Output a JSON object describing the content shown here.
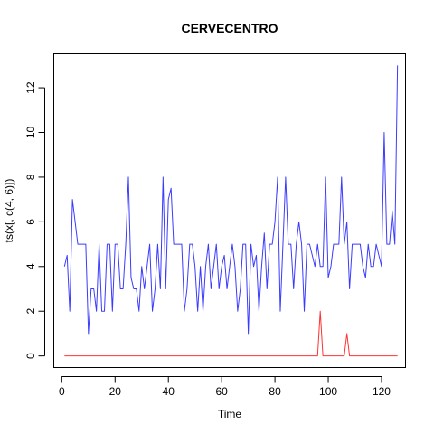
{
  "chart_data": {
    "type": "line",
    "title": "CERVECENTRO",
    "xlabel": "Time",
    "ylabel": "ts(x[, c(4, 6)])",
    "xlim": [
      -3,
      129
    ],
    "ylim": [
      -0.52,
      13.52
    ],
    "xticks": [
      0,
      20,
      40,
      60,
      80,
      100,
      120
    ],
    "yticks": [
      0,
      2,
      4,
      6,
      8,
      10,
      12
    ],
    "grid": false,
    "x_start": 1,
    "series": [
      {
        "color": "#3b3bff",
        "values": [
          4,
          4.5,
          2,
          7,
          6,
          5,
          5,
          5,
          5,
          1,
          3,
          3,
          2,
          5,
          2,
          2,
          5,
          5,
          2,
          5,
          5,
          3,
          3,
          5,
          8,
          3.5,
          3,
          3,
          2,
          4,
          3,
          4,
          5,
          2,
          3,
          5,
          3,
          8,
          3,
          7,
          7.5,
          5,
          5,
          5,
          5,
          2,
          3,
          5,
          5,
          4,
          2,
          4,
          2,
          4,
          5,
          3,
          4,
          5,
          3,
          4,
          4.5,
          3,
          4,
          5,
          4,
          2,
          3,
          5,
          5,
          1,
          5,
          4,
          4.5,
          2,
          4,
          5.5,
          3,
          5,
          5,
          6,
          8,
          2,
          5,
          8,
          5,
          5,
          3,
          5,
          6,
          5,
          2,
          5,
          5,
          4.5,
          4,
          5,
          4,
          4,
          8,
          3.5,
          4,
          5,
          5,
          5,
          8,
          5,
          6,
          3,
          5,
          5,
          5,
          5,
          4,
          3.5,
          5,
          4,
          4,
          5,
          4.5,
          4,
          10,
          5,
          5,
          6.5,
          5,
          13
        ]
      },
      {
        "color": "#ff3333",
        "values": [
          0,
          0,
          0,
          0,
          0,
          0,
          0,
          0,
          0,
          0,
          0,
          0,
          0,
          0,
          0,
          0,
          0,
          0,
          0,
          0,
          0,
          0,
          0,
          0,
          0,
          0,
          0,
          0,
          0,
          0,
          0,
          0,
          0,
          0,
          0,
          0,
          0,
          0,
          0,
          0,
          0,
          0,
          0,
          0,
          0,
          0,
          0,
          0,
          0,
          0,
          0,
          0,
          0,
          0,
          0,
          0,
          0,
          0,
          0,
          0,
          0,
          0,
          0,
          0,
          0,
          0,
          0,
          0,
          0,
          0,
          0,
          0,
          0,
          0,
          0,
          0,
          0,
          0,
          0,
          0,
          0,
          0,
          0,
          0,
          0,
          0,
          0,
          0,
          0,
          0,
          0,
          0,
          0,
          0,
          0,
          0,
          2,
          0,
          0,
          0,
          0,
          0,
          0,
          0,
          0,
          0,
          1,
          0,
          0,
          0,
          0,
          0,
          0,
          0,
          0,
          0,
          0,
          0,
          0,
          0,
          0,
          0,
          0,
          0,
          0,
          0
        ]
      }
    ]
  }
}
